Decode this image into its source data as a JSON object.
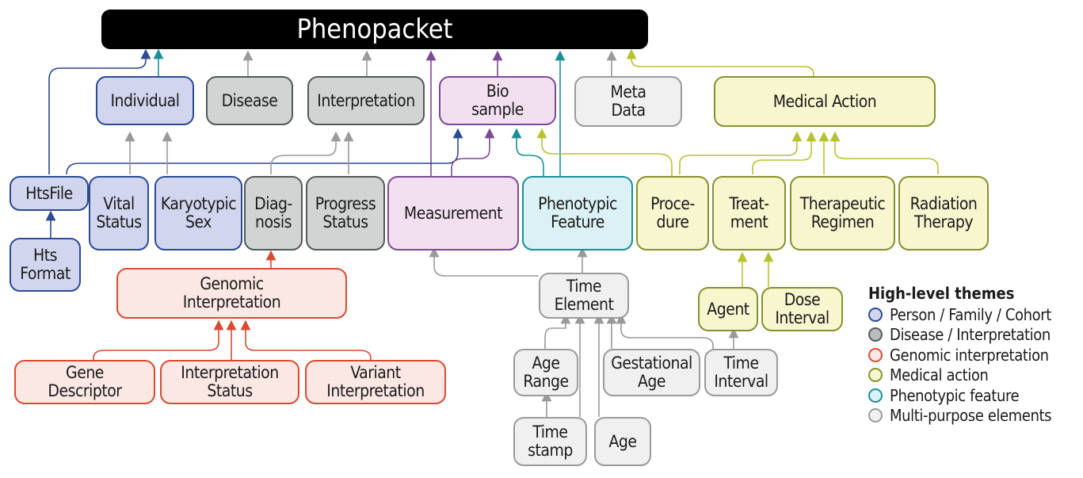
{
  "title": "Phenopacket",
  "nodes": {
    "individual": "Individual",
    "disease": "Disease",
    "interpretation": "Interpretation",
    "biosample": "Bio\nsample",
    "metadata": "Meta\nData",
    "medical_action": "Medical Action",
    "htsfile": "HtsFile",
    "vital_status": "Vital\nStatus",
    "karyotypic_sex": "Karyotypic\nSex",
    "diagnosis": "Diag-\nnosis",
    "progress_status": "Progress\nStatus",
    "measurement": "Measurement",
    "phenotypic_feature": "Phenotypic\nFeature",
    "procedure": "Proce-\ndure",
    "treatment": "Treat-\nment",
    "therapeutic_regimen": "Therapeutic\nRegimen",
    "radiation_therapy": "Radiation\nTherapy",
    "hts_format": "Hts\nFormat",
    "genomic_interpretation": "Genomic\nInterpretation",
    "gene_descriptor": "Gene\nDescriptor",
    "interpretation_status": "Interpretation\nStatus",
    "variant_interpretation": "Variant\nInterpretation",
    "time_element": "Time\nElement",
    "agent": "Agent",
    "dose_interval": "Dose\nInterval",
    "age_range": "Age\nRange",
    "gestational_age": "Gestational\nAge",
    "time_interval": "Time\nInterval",
    "time_stamp": "Time\nstamp",
    "age": "Age"
  },
  "legend": {
    "title": "High-level themes",
    "items": [
      {
        "label": "Person / Family / Cohort",
        "fill": "#d1d6ee",
        "stroke": "#2c4a93"
      },
      {
        "label": "Disease / Interpretation",
        "fill": "#b9bcba",
        "stroke": "#525a56"
      },
      {
        "label": "Genomic interpretation",
        "fill": "#fbe7e3",
        "stroke": "#da4a32"
      },
      {
        "label": "Medical action",
        "fill": "#f7f6cf",
        "stroke": "#86912d"
      },
      {
        "label": "Phenotypic feature",
        "fill": "#dbf1f5",
        "stroke": "#1a8f97"
      },
      {
        "label": "Multi-purpose elements",
        "fill": "#f0f0f0",
        "stroke": "#9a9a9a"
      }
    ]
  },
  "colors": {
    "person": "#2c4a93",
    "disease": "#525a56",
    "genomic": "#da4a32",
    "medical": "#b7c22f",
    "pheno": "#1a8f97",
    "multi": "#9a9a9a",
    "bio": "#7b4a94"
  }
}
